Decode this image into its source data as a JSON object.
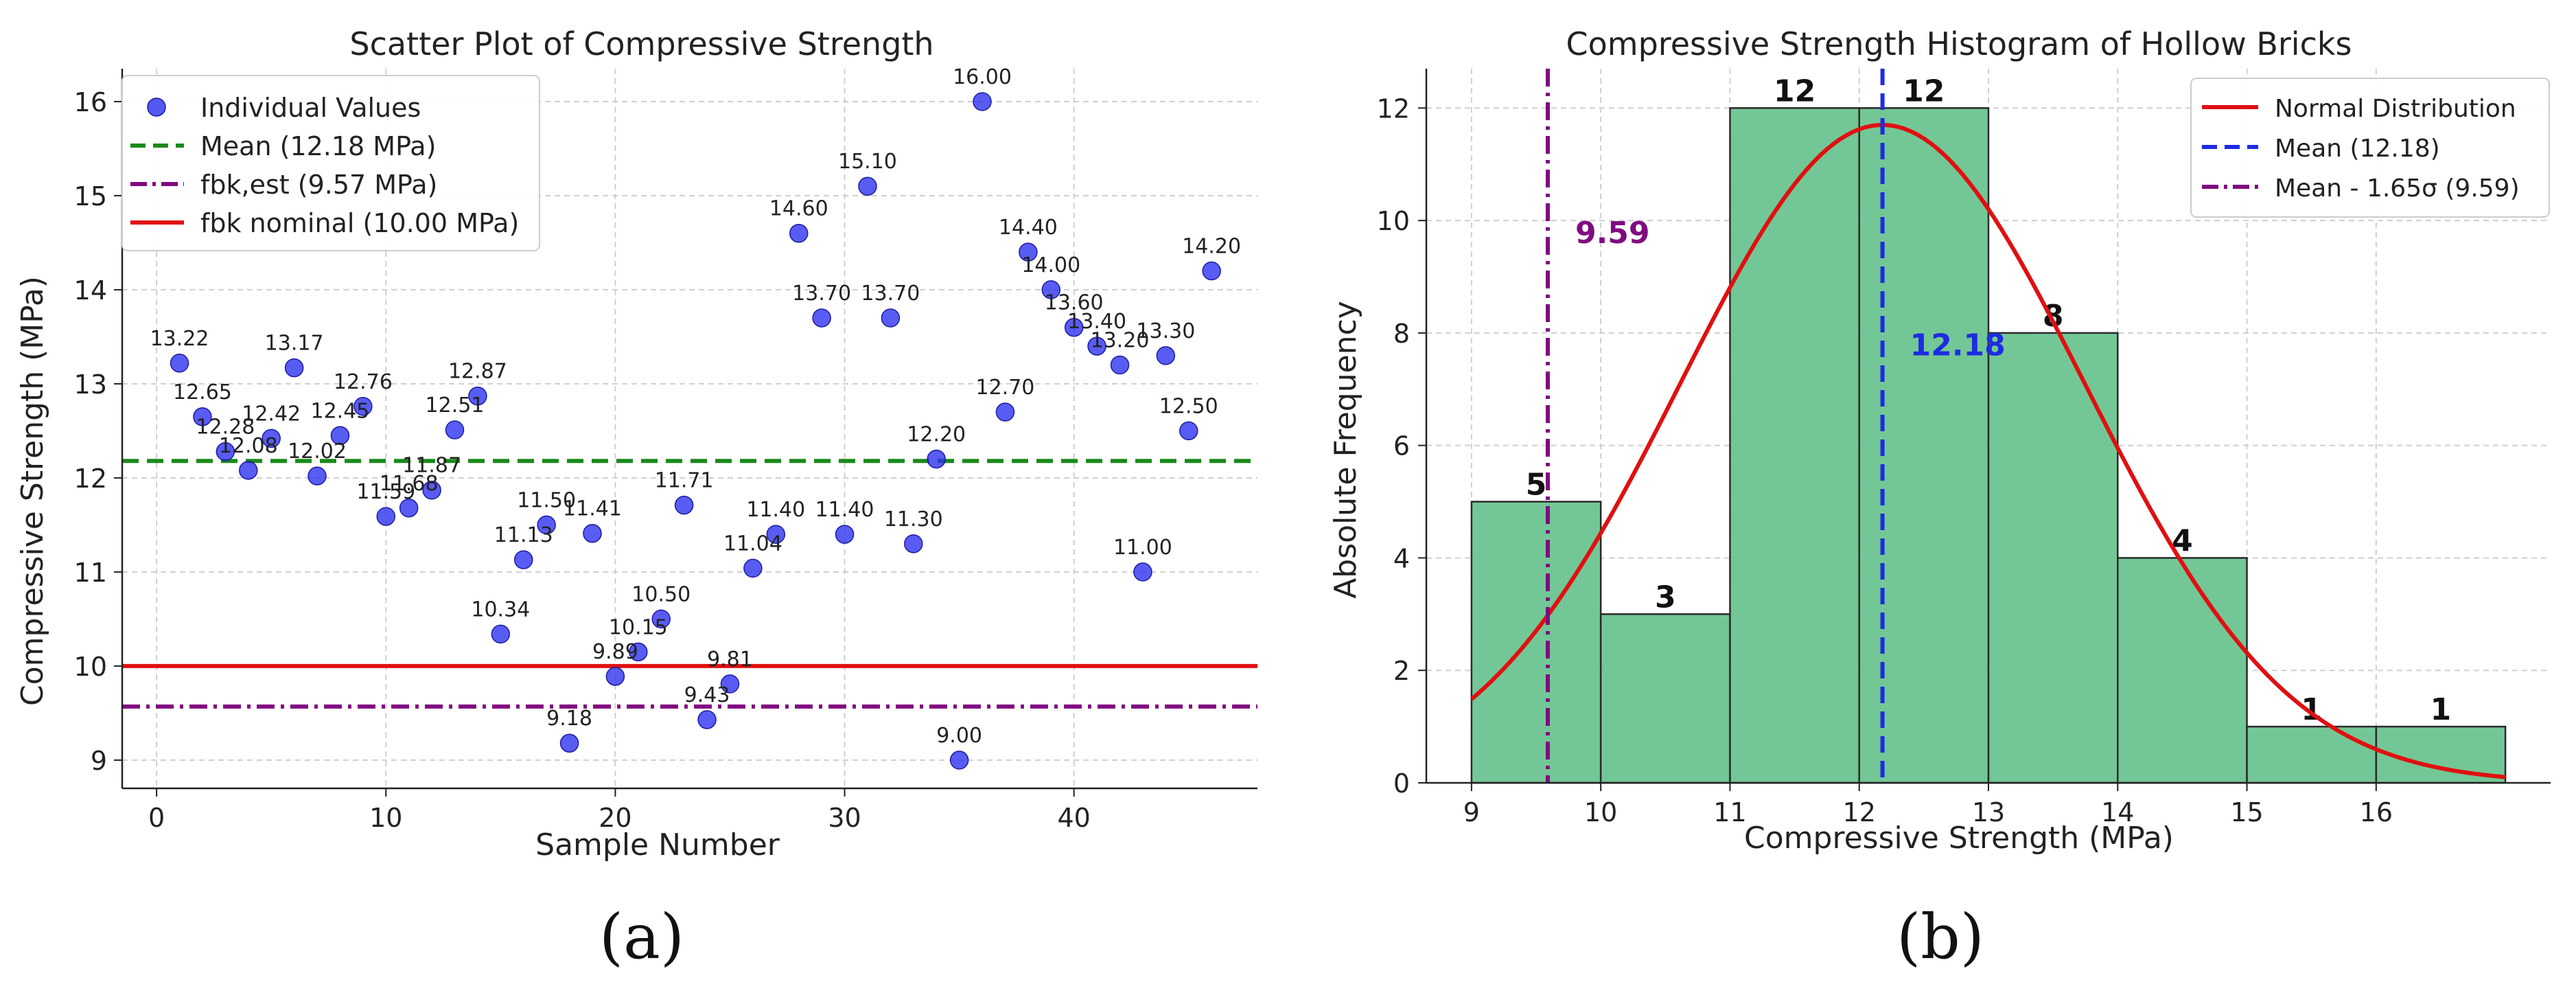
{
  "colors": {
    "scatter_point": "#2a2ef0",
    "mean_line": "#1a8a1a",
    "fbk_est_line": "#800a80",
    "fbk_nominal_line": "#e01010",
    "bar_fill": "#6cc490",
    "bar_edge": "#2a2a2a",
    "normal_curve": "#e01010",
    "hist_mean_line": "#1e2ce0",
    "hist_mean_label": "#1e2ce0",
    "hist_limit_line": "#800a80",
    "hist_limit_label": "#800a80",
    "grid": "#cfcfcf"
  },
  "labels": {
    "panel_a": "(a)",
    "panel_b": "(b)"
  },
  "chart_data": [
    {
      "type": "scatter",
      "title": "Scatter Plot of Compressive Strength",
      "xlabel": "Sample Number",
      "ylabel": "Compressive Strength (MPa)",
      "xlim": [
        -1.5,
        48
      ],
      "ylim": [
        8.7,
        16.35
      ],
      "xticks": [
        0,
        10,
        20,
        30,
        40
      ],
      "yticks": [
        9,
        10,
        11,
        12,
        13,
        14,
        15,
        16
      ],
      "grid": true,
      "legend_position": "top-left",
      "legend": {
        "points": "Individual Values",
        "mean": "Mean (12.18 MPa)",
        "fbk_est": "fbk,est (9.57 MPa)",
        "fbk_nominal": "fbk nominal (10.00 MPa)"
      },
      "reference_lines": {
        "mean": 12.18,
        "fbk_est": 9.57,
        "fbk_nominal": 10.0
      },
      "points": [
        {
          "x": 1,
          "y": 13.22,
          "label": "13.22"
        },
        {
          "x": 2,
          "y": 12.65,
          "label": "12.65"
        },
        {
          "x": 3,
          "y": 12.28,
          "label": "12.28"
        },
        {
          "x": 4,
          "y": 12.08,
          "label": "12.08"
        },
        {
          "x": 5,
          "y": 12.42,
          "label": "12.42"
        },
        {
          "x": 6,
          "y": 13.17,
          "label": "13.17"
        },
        {
          "x": 7,
          "y": 12.02,
          "label": "12.02"
        },
        {
          "x": 8,
          "y": 12.45,
          "label": "12.45"
        },
        {
          "x": 9,
          "y": 12.76,
          "label": "12.76"
        },
        {
          "x": 10,
          "y": 11.59,
          "label": "11.59"
        },
        {
          "x": 11,
          "y": 11.68,
          "label": "11.68"
        },
        {
          "x": 12,
          "y": 11.87,
          "label": "11.87"
        },
        {
          "x": 13,
          "y": 12.51,
          "label": "12.51"
        },
        {
          "x": 14,
          "y": 12.87,
          "label": "12.87"
        },
        {
          "x": 15,
          "y": 10.34,
          "label": "10.34"
        },
        {
          "x": 16,
          "y": 11.13,
          "label": "11.13"
        },
        {
          "x": 17,
          "y": 11.5,
          "label": "11.50"
        },
        {
          "x": 18,
          "y": 9.18,
          "label": "9.18"
        },
        {
          "x": 19,
          "y": 11.41,
          "label": "11.41"
        },
        {
          "x": 20,
          "y": 9.89,
          "label": "9.89"
        },
        {
          "x": 21,
          "y": 10.15,
          "label": "10.15"
        },
        {
          "x": 22,
          "y": 10.5,
          "label": "10.50"
        },
        {
          "x": 23,
          "y": 11.71,
          "label": "11.71"
        },
        {
          "x": 24,
          "y": 9.43,
          "label": "9.43"
        },
        {
          "x": 25,
          "y": 9.81,
          "label": "9.81"
        },
        {
          "x": 26,
          "y": 11.04,
          "label": "11.04"
        },
        {
          "x": 27,
          "y": 11.4,
          "label": "11.40"
        },
        {
          "x": 28,
          "y": 14.6,
          "label": "14.60"
        },
        {
          "x": 29,
          "y": 13.7,
          "label": "13.70"
        },
        {
          "x": 30,
          "y": 11.4,
          "label": "11.40"
        },
        {
          "x": 31,
          "y": 15.1,
          "label": "15.10"
        },
        {
          "x": 32,
          "y": 13.7,
          "label": "13.70"
        },
        {
          "x": 33,
          "y": 11.3,
          "label": "11.30"
        },
        {
          "x": 34,
          "y": 12.2,
          "label": "12.20"
        },
        {
          "x": 35,
          "y": 9.0,
          "label": "9.00"
        },
        {
          "x": 36,
          "y": 16.0,
          "label": "16.00"
        },
        {
          "x": 37,
          "y": 12.7,
          "label": "12.70"
        },
        {
          "x": 38,
          "y": 14.4,
          "label": "14.40"
        },
        {
          "x": 39,
          "y": 14.0,
          "label": "14.00"
        },
        {
          "x": 40,
          "y": 13.6,
          "label": "13.60"
        },
        {
          "x": 41,
          "y": 13.4,
          "label": "13.40"
        },
        {
          "x": 42,
          "y": 13.2,
          "label": "13.20"
        },
        {
          "x": 43,
          "y": 11.0,
          "label": "11.00"
        },
        {
          "x": 44,
          "y": 13.3,
          "label": "13.30"
        },
        {
          "x": 45,
          "y": 12.5,
          "label": "12.50"
        },
        {
          "x": 46,
          "y": 14.2,
          "label": "14.20"
        }
      ]
    },
    {
      "type": "bar",
      "title": "Compressive Strength Histogram of Hollow Bricks",
      "xlabel": "Compressive Strength (MPa)",
      "ylabel": "Absolute Frequency",
      "xlim": [
        8.65,
        17.35
      ],
      "ylim": [
        0,
        12.7
      ],
      "xticks": [
        9,
        10,
        11,
        12,
        13,
        14,
        15,
        16
      ],
      "yticks": [
        0,
        2,
        4,
        6,
        8,
        10,
        12
      ],
      "grid": true,
      "legend_position": "top-right",
      "legend": {
        "curve": "Normal Distribution",
        "mean": "Mean (12.18)",
        "limit": "Mean - 1.65σ (9.59)"
      },
      "bins": [
        {
          "from": 9,
          "to": 10,
          "count": 5,
          "label": "5"
        },
        {
          "from": 10,
          "to": 11,
          "count": 3,
          "label": "3"
        },
        {
          "from": 11,
          "to": 12,
          "count": 12,
          "label": "12"
        },
        {
          "from": 12,
          "to": 13,
          "count": 12,
          "label": "12"
        },
        {
          "from": 13,
          "to": 14,
          "count": 8,
          "label": "8"
        },
        {
          "from": 14,
          "to": 15,
          "count": 4,
          "label": "4"
        },
        {
          "from": 15,
          "to": 16,
          "count": 1,
          "label": "1"
        },
        {
          "from": 16,
          "to": 17,
          "count": 1,
          "label": "1"
        }
      ],
      "normal_curve": {
        "mean": 12.18,
        "sigma": 1.566,
        "peak": 11.7,
        "x_range": [
          9,
          17
        ]
      },
      "mean_line": {
        "x": 12.18,
        "label": "12.18",
        "label_y": 7.6
      },
      "limit_line": {
        "x": 9.59,
        "label": "9.59",
        "label_y": 9.6
      }
    }
  ]
}
